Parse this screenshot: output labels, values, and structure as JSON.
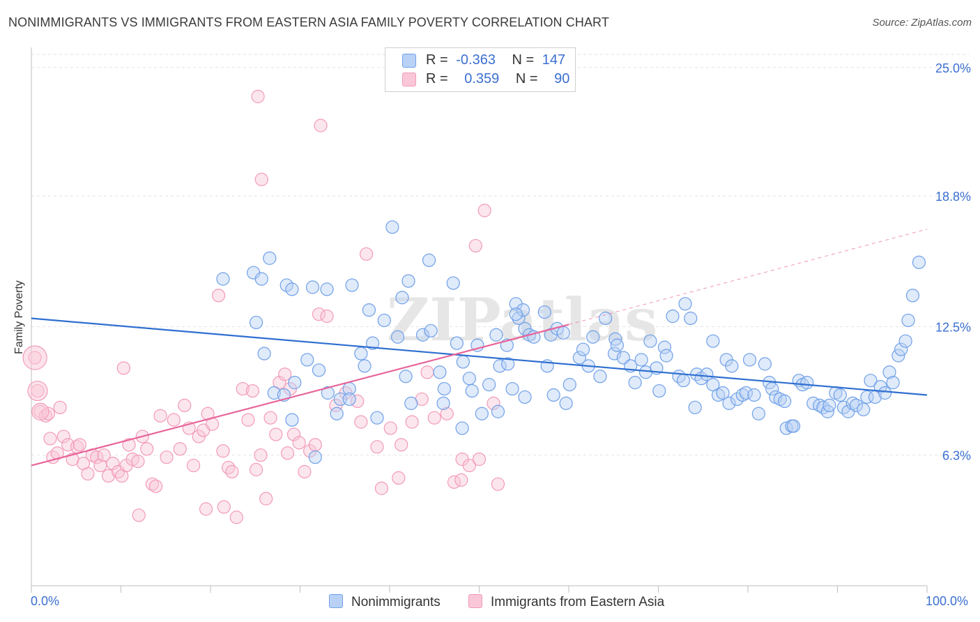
{
  "title": "NONIMMIGRANTS VS IMMIGRANTS FROM EASTERN ASIA FAMILY POVERTY CORRELATION CHART",
  "source": "Source: ZipAtlas.com",
  "watermark": "ZIPatlas",
  "legend": {
    "rows": [
      {
        "r_label": "R =",
        "r_value": "-0.363",
        "n_label": "N =",
        "n_value": "147"
      },
      {
        "r_label": "R =",
        "r_value": "0.359",
        "n_label": "N =",
        "n_value": "90"
      }
    ]
  },
  "bottom_legend": [
    "Nonimmigrants",
    "Immigrants from Eastern Asia"
  ],
  "chart_data": {
    "type": "scatter",
    "title": "NONIMMIGRANTS VS IMMIGRANTS FROM EASTERN ASIA FAMILY POVERTY CORRELATION CHART",
    "xlabel": "",
    "ylabel": "Family Poverty",
    "xlim": [
      0,
      100
    ],
    "ylim": [
      0,
      25.9
    ],
    "x_tick_labels": [
      "0.0%",
      "100.0%"
    ],
    "y_ticks": [
      6.3,
      12.5,
      18.8,
      25.0
    ],
    "y_tick_labels": [
      "6.3%",
      "12.5%",
      "18.8%",
      "25.0%"
    ],
    "grid": true,
    "colors": {
      "blue": "#6fa0e8",
      "pink": "#f29ab8",
      "blue_line": "#2f6fd0",
      "pink_line": "#e8649a",
      "tick_text": "#3b6fd1"
    },
    "series": [
      {
        "name": "Nonimmigrants",
        "color": "#6fa0e8",
        "trend": {
          "x": [
            0,
            100
          ],
          "y": [
            12.9,
            9.2
          ]
        },
        "points": [
          [
            21.4,
            14.8
          ],
          [
            24.8,
            15.1
          ],
          [
            25.7,
            14.8
          ],
          [
            26.6,
            15.8
          ],
          [
            28.5,
            14.5
          ],
          [
            29.1,
            14.3
          ],
          [
            31.4,
            14.4
          ],
          [
            33.0,
            14.3
          ],
          [
            35.8,
            14.5
          ],
          [
            40.3,
            17.3
          ],
          [
            42.1,
            14.7
          ],
          [
            44.4,
            15.7
          ],
          [
            47.1,
            14.6
          ],
          [
            25.1,
            12.7
          ],
          [
            26.0,
            11.2
          ],
          [
            27.1,
            9.3
          ],
          [
            29.4,
            9.8
          ],
          [
            30.8,
            10.9
          ],
          [
            31.7,
            6.2
          ],
          [
            34.5,
            9.0
          ],
          [
            35.5,
            9.5
          ],
          [
            35.5,
            9.0
          ],
          [
            37.2,
            10.6
          ],
          [
            38.1,
            11.7
          ],
          [
            38.6,
            8.1
          ],
          [
            39.4,
            12.8
          ],
          [
            37.7,
            13.3
          ],
          [
            36.8,
            11.2
          ],
          [
            40.9,
            12.0
          ],
          [
            41.4,
            13.9
          ],
          [
            41.8,
            10.1
          ],
          [
            42.4,
            8.8
          ],
          [
            43.7,
            12.1
          ],
          [
            44.6,
            12.3
          ],
          [
            45.6,
            10.3
          ],
          [
            46.0,
            8.8
          ],
          [
            47.5,
            11.7
          ],
          [
            48.2,
            10.8
          ],
          [
            48.9,
            10.0
          ],
          [
            49.2,
            9.4
          ],
          [
            49.8,
            11.6
          ],
          [
            50.3,
            8.3
          ],
          [
            51.1,
            9.7
          ],
          [
            51.9,
            12.1
          ],
          [
            52.3,
            10.6
          ],
          [
            53.2,
            10.7
          ],
          [
            53.7,
            9.5
          ],
          [
            54.1,
            13.6
          ],
          [
            54.4,
            12.9
          ],
          [
            54.9,
            13.3
          ],
          [
            55.1,
            12.4
          ],
          [
            55.6,
            12.1
          ],
          [
            56.1,
            12.0
          ],
          [
            57.3,
            13.2
          ],
          [
            58.0,
            12.1
          ],
          [
            58.7,
            12.4
          ],
          [
            57.6,
            10.6
          ],
          [
            58.3,
            9.2
          ],
          [
            59.4,
            12.2
          ],
          [
            59.7,
            8.8
          ],
          [
            61.2,
            11.0
          ],
          [
            61.6,
            11.4
          ],
          [
            62.2,
            10.6
          ],
          [
            62.7,
            12.0
          ],
          [
            63.5,
            10.1
          ],
          [
            64.1,
            12.9
          ],
          [
            65.1,
            11.2
          ],
          [
            65.2,
            11.9
          ],
          [
            65.4,
            11.6
          ],
          [
            66.1,
            11.0
          ],
          [
            66.9,
            10.6
          ],
          [
            67.4,
            9.8
          ],
          [
            68.1,
            10.9
          ],
          [
            68.6,
            10.3
          ],
          [
            69.1,
            11.8
          ],
          [
            69.8,
            10.5
          ],
          [
            70.7,
            11.5
          ],
          [
            70.9,
            11.1
          ],
          [
            71.6,
            13.0
          ],
          [
            72.3,
            10.1
          ],
          [
            72.8,
            9.9
          ],
          [
            73.0,
            13.6
          ],
          [
            73.6,
            12.9
          ],
          [
            74.3,
            10.2
          ],
          [
            74.8,
            10.0
          ],
          [
            75.4,
            10.2
          ],
          [
            76.1,
            11.8
          ],
          [
            76.7,
            9.2
          ],
          [
            77.2,
            9.3
          ],
          [
            77.6,
            10.9
          ],
          [
            77.9,
            8.8
          ],
          [
            78.2,
            10.6
          ],
          [
            78.8,
            9.0
          ],
          [
            79.4,
            9.2
          ],
          [
            79.8,
            9.3
          ],
          [
            80.7,
            9.2
          ],
          [
            81.2,
            8.3
          ],
          [
            81.9,
            10.7
          ],
          [
            82.4,
            9.8
          ],
          [
            82.7,
            9.5
          ],
          [
            83.1,
            9.1
          ],
          [
            83.6,
            9.0
          ],
          [
            84.3,
            7.6
          ],
          [
            84.9,
            7.7
          ],
          [
            85.1,
            7.7
          ],
          [
            85.7,
            9.9
          ],
          [
            86.1,
            9.7
          ],
          [
            86.6,
            9.8
          ],
          [
            87.3,
            8.8
          ],
          [
            88.0,
            8.7
          ],
          [
            88.4,
            8.6
          ],
          [
            88.9,
            8.4
          ],
          [
            89.1,
            8.7
          ],
          [
            89.8,
            9.3
          ],
          [
            90.3,
            9.2
          ],
          [
            90.7,
            8.6
          ],
          [
            91.2,
            8.4
          ],
          [
            91.7,
            8.8
          ],
          [
            92.1,
            8.7
          ],
          [
            92.9,
            8.5
          ],
          [
            93.3,
            9.1
          ],
          [
            93.7,
            9.9
          ],
          [
            94.2,
            9.1
          ],
          [
            94.8,
            9.6
          ],
          [
            95.3,
            9.3
          ],
          [
            95.8,
            10.3
          ],
          [
            96.2,
            9.8
          ],
          [
            96.8,
            11.1
          ],
          [
            97.1,
            11.4
          ],
          [
            97.6,
            11.8
          ],
          [
            97.9,
            12.8
          ],
          [
            98.4,
            14.0
          ],
          [
            99.1,
            15.6
          ],
          [
            54.1,
            13.1
          ],
          [
            53.1,
            11.6
          ],
          [
            28.2,
            9.2
          ],
          [
            29.1,
            8.0
          ],
          [
            32.1,
            10.4
          ],
          [
            33.1,
            9.3
          ],
          [
            34.1,
            8.3
          ],
          [
            46.1,
            9.5
          ],
          [
            48.1,
            7.6
          ],
          [
            52.1,
            8.4
          ],
          [
            55.1,
            9.1
          ],
          [
            60.1,
            9.7
          ],
          [
            70.1,
            9.4
          ],
          [
            74.1,
            8.6
          ],
          [
            76.1,
            9.7
          ],
          [
            80.2,
            10.9
          ],
          [
            84.1,
            8.9
          ]
        ]
      },
      {
        "name": "Immigrants from Eastern Asia",
        "color": "#f29ab8",
        "trend": {
          "x": [
            0,
            60
          ],
          "y": [
            5.8,
            12.6
          ]
        },
        "trend_extension": {
          "x": [
            60,
            100
          ],
          "y": [
            12.6,
            17.2
          ]
        },
        "points": [
          [
            0.4,
            11.0
          ],
          [
            0.7,
            9.4
          ],
          [
            1.0,
            8.4
          ],
          [
            1.6,
            8.2
          ],
          [
            1.9,
            8.3
          ],
          [
            2.1,
            7.1
          ],
          [
            2.4,
            6.2
          ],
          [
            2.9,
            6.4
          ],
          [
            3.2,
            8.6
          ],
          [
            3.6,
            7.2
          ],
          [
            4.1,
            6.8
          ],
          [
            4.6,
            6.1
          ],
          [
            5.1,
            6.7
          ],
          [
            5.4,
            6.8
          ],
          [
            5.8,
            5.9
          ],
          [
            6.3,
            5.4
          ],
          [
            6.8,
            6.3
          ],
          [
            7.3,
            6.2
          ],
          [
            7.7,
            5.8
          ],
          [
            8.1,
            6.3
          ],
          [
            8.6,
            5.3
          ],
          [
            9.1,
            5.9
          ],
          [
            9.7,
            5.5
          ],
          [
            10.1,
            5.3
          ],
          [
            10.6,
            5.8
          ],
          [
            10.9,
            6.8
          ],
          [
            11.3,
            6.1
          ],
          [
            11.9,
            6.0
          ],
          [
            12.4,
            7.2
          ],
          [
            12.9,
            6.6
          ],
          [
            13.5,
            4.9
          ],
          [
            13.9,
            4.8
          ],
          [
            14.4,
            8.2
          ],
          [
            15.1,
            6.2
          ],
          [
            15.9,
            8.0
          ],
          [
            16.6,
            6.6
          ],
          [
            17.1,
            8.7
          ],
          [
            17.6,
            7.6
          ],
          [
            18.1,
            5.8
          ],
          [
            18.7,
            7.2
          ],
          [
            19.2,
            7.5
          ],
          [
            19.7,
            8.3
          ],
          [
            20.2,
            7.8
          ],
          [
            20.9,
            14.0
          ],
          [
            21.4,
            6.5
          ],
          [
            22.0,
            5.7
          ],
          [
            22.4,
            5.5
          ],
          [
            22.9,
            3.3
          ],
          [
            23.6,
            9.5
          ],
          [
            24.2,
            8.0
          ],
          [
            24.7,
            9.4
          ],
          [
            25.1,
            5.6
          ],
          [
            25.6,
            6.3
          ],
          [
            26.2,
            4.2
          ],
          [
            26.7,
            8.1
          ],
          [
            27.3,
            7.3
          ],
          [
            27.7,
            9.8
          ],
          [
            28.3,
            10.2
          ],
          [
            28.9,
            9.5
          ],
          [
            29.3,
            7.3
          ],
          [
            29.9,
            6.9
          ],
          [
            30.5,
            5.5
          ],
          [
            31.1,
            6.5
          ],
          [
            31.7,
            6.8
          ],
          [
            32.1,
            13.1
          ],
          [
            33.0,
            13.0
          ],
          [
            34.0,
            8.7
          ],
          [
            35.1,
            9.3
          ],
          [
            36.4,
            8.9
          ],
          [
            37.4,
            16.0
          ],
          [
            38.6,
            6.7
          ],
          [
            40.1,
            7.6
          ],
          [
            41.3,
            6.8
          ],
          [
            42.5,
            7.9
          ],
          [
            43.6,
            9.0
          ],
          [
            45.0,
            8.1
          ],
          [
            46.4,
            8.3
          ],
          [
            47.2,
            5.0
          ],
          [
            48.1,
            6.1
          ],
          [
            48.9,
            5.8
          ],
          [
            49.6,
            16.4
          ],
          [
            50.0,
            6.1
          ],
          [
            50.6,
            18.1
          ],
          [
            51.6,
            8.8
          ],
          [
            52.1,
            4.9
          ],
          [
            10.3,
            10.5
          ],
          [
            12.0,
            3.4
          ],
          [
            19.5,
            3.7
          ],
          [
            21.5,
            3.8
          ],
          [
            25.3,
            23.6
          ]
        ]
      }
    ],
    "extra_pink_points": [
      [
        32.3,
        22.2
      ],
      [
        25.7,
        19.6
      ],
      [
        36.8,
        7.9
      ],
      [
        28.6,
        6.4
      ],
      [
        41.0,
        5.2
      ],
      [
        48.0,
        5.1
      ],
      [
        39.1,
        4.7
      ],
      [
        44.2,
        10.3
      ]
    ]
  }
}
